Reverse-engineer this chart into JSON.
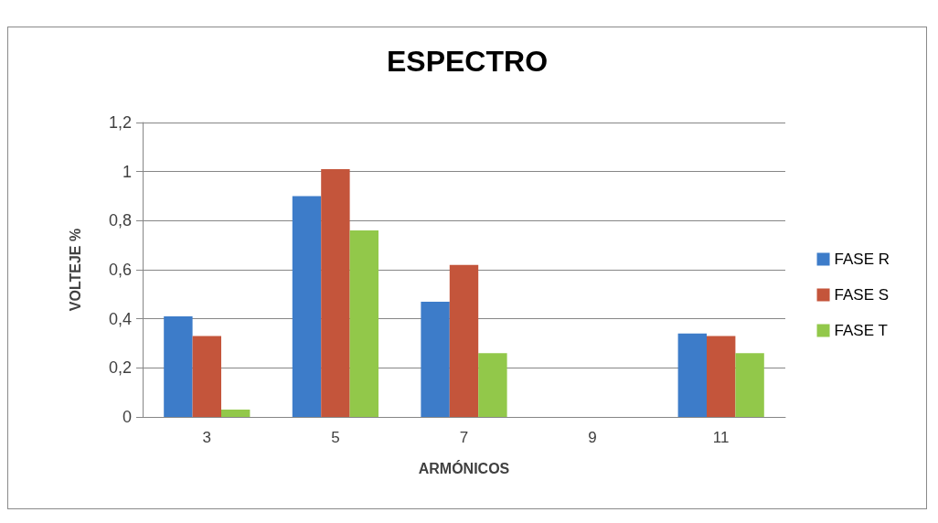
{
  "chart_data": {
    "type": "bar",
    "title": "ESPECTRO",
    "xlabel": "ARMÓNICOS",
    "ylabel": "VOLTEJE %",
    "categories": [
      "3",
      "5",
      "7",
      "9",
      "11"
    ],
    "series": [
      {
        "name": "FASE R",
        "color": "#3d7cc9",
        "values": [
          0.41,
          0.9,
          0.47,
          null,
          0.34
        ]
      },
      {
        "name": "FASE S",
        "color": "#c4553b",
        "values": [
          0.33,
          1.01,
          0.62,
          null,
          0.33
        ]
      },
      {
        "name": "FASE T",
        "color": "#92c84a",
        "values": [
          0.03,
          0.76,
          0.26,
          null,
          0.26
        ]
      }
    ],
    "ylim": [
      0,
      1.2
    ],
    "yticks": [
      0,
      {
        "value": 0.2,
        "label": "0,2"
      },
      {
        "value": 0.4,
        "label": "0,4"
      },
      {
        "value": 0.6,
        "label": "0,6"
      },
      {
        "value": 0.8,
        "label": "0,8"
      },
      1,
      {
        "value": 1.2,
        "label": "1,2"
      }
    ],
    "grid": "y",
    "legend": "right"
  }
}
